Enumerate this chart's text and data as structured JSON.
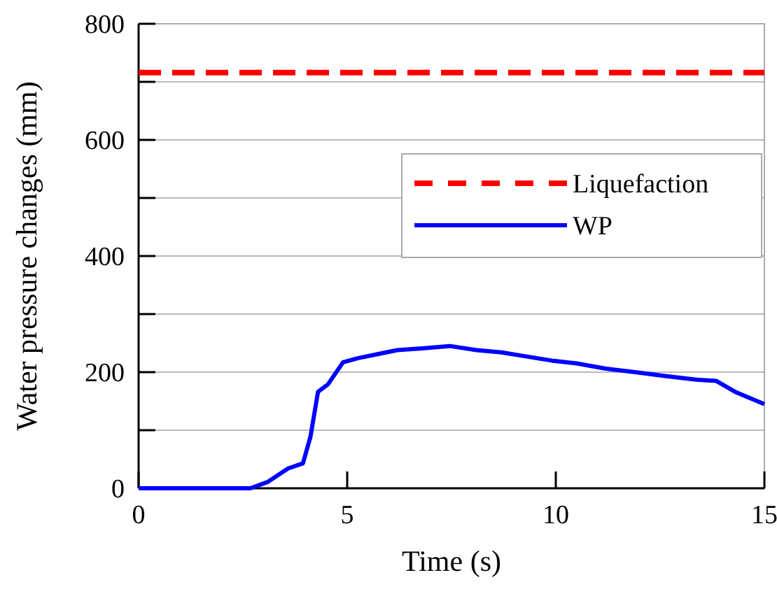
{
  "chart_data": {
    "type": "line",
    "xlabel": "Time (s)",
    "ylabel": "Water pressure changes (mm)",
    "xlim": [
      0,
      15
    ],
    "xticks": [
      0,
      5,
      10,
      15
    ],
    "ylim": [
      0,
      800
    ],
    "yticks": [
      0,
      {
        "value": 100,
        "label": null
      },
      200,
      {
        "value": 300,
        "label": null
      },
      400,
      {
        "value": 500,
        "label": null
      },
      600,
      {
        "value": 700,
        "label": null
      },
      800
    ],
    "grid": "y",
    "legend": "right",
    "series": [
      {
        "name": "Liquefaction",
        "color": "#ff0000",
        "line_style": "dashed",
        "x": [
          0,
          15
        ],
        "values": [
          716,
          716
        ]
      },
      {
        "name": "WP",
        "color": "#0000ff",
        "line_style": "solid",
        "x": [
          0,
          2.68,
          3.1,
          3.58,
          3.94,
          4.12,
          4.3,
          4.54,
          4.9,
          5.25,
          5.73,
          6.2,
          6.8,
          7.46,
          8.1,
          8.7,
          9.3,
          9.9,
          10.5,
          11.2,
          11.9,
          12.65,
          13.37,
          13.84,
          14.3,
          15
        ],
        "values": [
          0,
          0,
          11,
          34,
          43,
          89,
          166,
          179,
          217,
          224,
          231,
          238,
          241,
          245,
          238,
          234,
          227,
          220,
          215,
          206,
          200,
          193,
          187,
          185,
          166,
          145
        ]
      }
    ]
  }
}
